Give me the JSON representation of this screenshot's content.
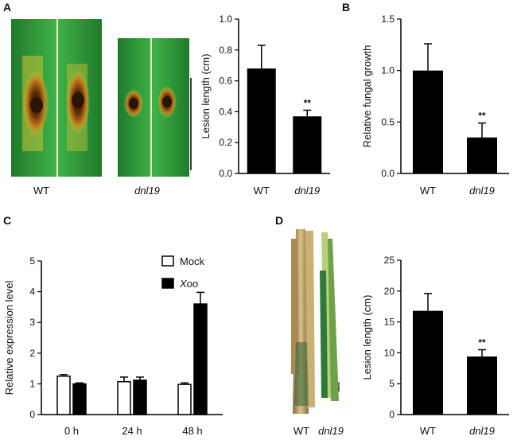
{
  "panels": {
    "a": "A",
    "b": "B",
    "c": "C",
    "d": "D"
  },
  "photo_labels": {
    "a_wt": "WT",
    "a_mut": "dnl19",
    "d_wt": "WT",
    "d_mut": "dnl19"
  },
  "colors": {
    "bar": "#000000",
    "open_bar": "#ffffff",
    "leaf_green": "#2f9e3a",
    "lesion": "#8a4a10"
  },
  "chart_data": [
    {
      "id": "A",
      "type": "bar",
      "categories": [
        "WT",
        "dnl19"
      ],
      "values": [
        0.68,
        0.37
      ],
      "errors": [
        0.15,
        0.04
      ],
      "significance": [
        "",
        "**"
      ],
      "ylabel": "Lesion length (cm)",
      "ylim": [
        0,
        1.0
      ],
      "yticks": [
        "0.0",
        "0.2",
        "0.4",
        "0.6",
        "0.8",
        "1.0"
      ],
      "ytick_values": [
        0,
        0.2,
        0.4,
        0.6,
        0.8,
        1.0
      ]
    },
    {
      "id": "B",
      "type": "bar",
      "categories": [
        "WT",
        "dnl19"
      ],
      "values": [
        1.0,
        0.35
      ],
      "errors": [
        0.26,
        0.14
      ],
      "significance": [
        "",
        "**"
      ],
      "ylabel": "Relative fungal growth",
      "ylim": [
        0,
        1.5
      ],
      "yticks": [
        "0.0",
        "0.5",
        "1.0",
        "1.5"
      ],
      "ytick_values": [
        0,
        0.5,
        1.0,
        1.5
      ]
    },
    {
      "id": "C",
      "type": "bar",
      "categories": [
        "0 h",
        "24 h",
        "48 h"
      ],
      "series": [
        {
          "name": "Mock",
          "values": [
            1.25,
            1.07,
            0.98
          ],
          "errors": [
            0.05,
            0.15,
            0.05
          ]
        },
        {
          "name": "Xoo",
          "values": [
            1.0,
            1.12,
            3.6
          ],
          "errors": [
            0.03,
            0.1,
            0.38
          ]
        }
      ],
      "ylabel": "Relative expression level",
      "ylim": [
        0,
        5
      ],
      "yticks": [
        "0",
        "1",
        "2",
        "3",
        "4",
        "5"
      ],
      "ytick_values": [
        0,
        1,
        2,
        3,
        4,
        5
      ],
      "legend": "top-right"
    },
    {
      "id": "D",
      "type": "bar",
      "categories": [
        "WT",
        "dnl19"
      ],
      "values": [
        16.8,
        9.4
      ],
      "errors": [
        2.8,
        1.1
      ],
      "significance": [
        "",
        "**"
      ],
      "ylabel": "Lesion length (cm)",
      "ylim": [
        0,
        25
      ],
      "yticks": [
        "0",
        "5",
        "10",
        "15",
        "20",
        "25"
      ],
      "ytick_values": [
        0,
        5,
        10,
        15,
        20,
        25
      ]
    }
  ]
}
